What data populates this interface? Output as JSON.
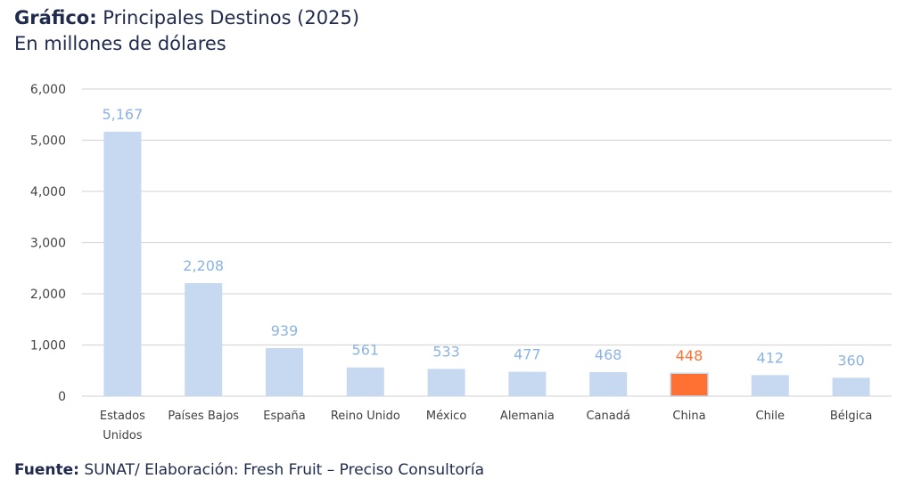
{
  "header": {
    "title_bold": "Gráfico:",
    "title_rest": " Principales Destinos (2025)",
    "subtitle": "En millones de dólares"
  },
  "footer": {
    "source_bold": "Fuente:",
    "source_rest": " SUNAT/ Elaboración: Fresh Fruit – Preciso Consultoría"
  },
  "colors": {
    "bar_default": "#c6d9f0",
    "bar_highlight": "#ff7033",
    "label_default": "#8db3e2",
    "label_highlight": "#ff7033",
    "grid": "#d9d9d9"
  },
  "chart_data": {
    "type": "bar",
    "title": "Principales Destinos (2025)",
    "subtitle": "En millones de dólares",
    "xlabel": "",
    "ylabel": "",
    "ylim": [
      0,
      6000
    ],
    "yticks": [
      0,
      1000,
      2000,
      3000,
      4000,
      5000,
      6000
    ],
    "ytick_labels": [
      "0",
      "1,000",
      "2,000",
      "3,000",
      "4,000",
      "5,000",
      "6,000"
    ],
    "grid": true,
    "legend": "none",
    "categories": [
      [
        "Estados",
        "Unidos"
      ],
      [
        "Países Bajos"
      ],
      [
        "España"
      ],
      [
        "Reino Unido"
      ],
      [
        "México"
      ],
      [
        "Alemania"
      ],
      [
        "Canadá"
      ],
      [
        "China"
      ],
      [
        "Chile"
      ],
      [
        "Bélgica"
      ]
    ],
    "values": [
      5167,
      2208,
      939,
      561,
      533,
      477,
      468,
      448,
      412,
      360
    ],
    "data_labels": [
      "5,167",
      "2,208",
      "939",
      "561",
      "533",
      "477",
      "468",
      "448",
      "412",
      "360"
    ],
    "highlight": "China"
  }
}
